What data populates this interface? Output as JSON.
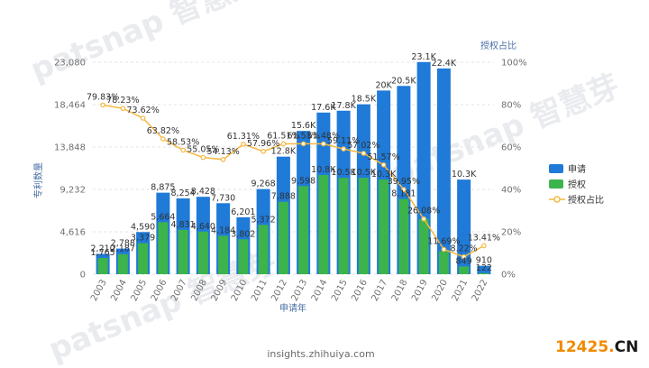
{
  "chart_data": {
    "type": "bar",
    "xlabel": "申请年",
    "ylabel": "专利数量",
    "y2label": "授权占比",
    "categories": [
      "2003",
      "2004",
      "2005",
      "2006",
      "2007",
      "2008",
      "2009",
      "2010",
      "2011",
      "2012",
      "2013",
      "2014",
      "2015",
      "2016",
      "2017",
      "2018",
      "2019",
      "2020",
      "2021",
      "2022"
    ],
    "y_ticks": [
      "0",
      "4,616",
      "9,232",
      "13,848",
      "18,464",
      "23,080"
    ],
    "y2_ticks": [
      "0%",
      "20%",
      "40%",
      "60%",
      "80%",
      "100%"
    ],
    "ylim": [
      0,
      23080
    ],
    "y2lim": [
      0,
      100
    ],
    "grid": true,
    "legend_position": "right",
    "series": [
      {
        "name": "申请",
        "kind": "bar",
        "color": "#1f7ad8",
        "values": [
          2210,
          2788,
          4590,
          8875,
          8254,
          8428,
          7730,
          6201,
          9268,
          12800,
          15600,
          17600,
          17800,
          18500,
          20000,
          20500,
          23100,
          22400,
          10300,
          910
        ],
        "labels": [
          "2,210",
          "2,788",
          "4,590",
          "8,875",
          "8,254",
          "8,428",
          "7,730",
          "6,201",
          "9,268",
          "12.8K",
          "15.6K",
          "17.6K",
          "17.8K",
          "18.5K",
          "20K",
          "20.5K",
          "23.1K",
          "22.4K",
          "10.3K",
          "910"
        ]
      },
      {
        "name": "授权",
        "kind": "bar",
        "color": "#3cb44b",
        "values": [
          1765,
          2187,
          3379,
          5664,
          4831,
          4640,
          4184,
          3802,
          5372,
          7888,
          9598,
          10800,
          10500,
          10500,
          10300,
          8181,
          6000,
          2500,
          849,
          122
        ],
        "labels": [
          "1,765",
          "2,187",
          "3,379",
          "5,664",
          "4,831",
          "4,640",
          "4,184",
          "3,802",
          "5,372",
          "7,888",
          "9,598",
          "10.8K",
          "10.5K",
          "10.5K",
          "10.3K",
          "8,181",
          "",
          "",
          "849",
          "122"
        ]
      },
      {
        "name": "授权占比",
        "kind": "line",
        "color": "#f5b841",
        "values": [
          79.83,
          78.23,
          73.62,
          63.82,
          58.53,
          55.05,
          54.13,
          61.31,
          57.96,
          61.51,
          61.53,
          61.48,
          59.11,
          57.02,
          51.57,
          39.95,
          26.08,
          11.69,
          8.22,
          13.41
        ],
        "labels": [
          "79.83%",
          "78.23%",
          "73.62%",
          "63.82%",
          "58.53%",
          "55.05%",
          "54.13%",
          "61.31%",
          "57.96%",
          "61.51%",
          "61.53%",
          "61.48%",
          "59.11%",
          "57.02%",
          "51.57%",
          "39.95%",
          "26.08%",
          "11.69%",
          "8.22%",
          "13.41%"
        ]
      }
    ]
  },
  "source": "insights.zhihuiya.com",
  "watermark": "patsnap 智慧芽",
  "badge": {
    "text_main": "12425",
    "text_dot": ".",
    "text_tail": "CN",
    "color_main": "#f28a00",
    "color_tail": "#1a1a1a"
  }
}
